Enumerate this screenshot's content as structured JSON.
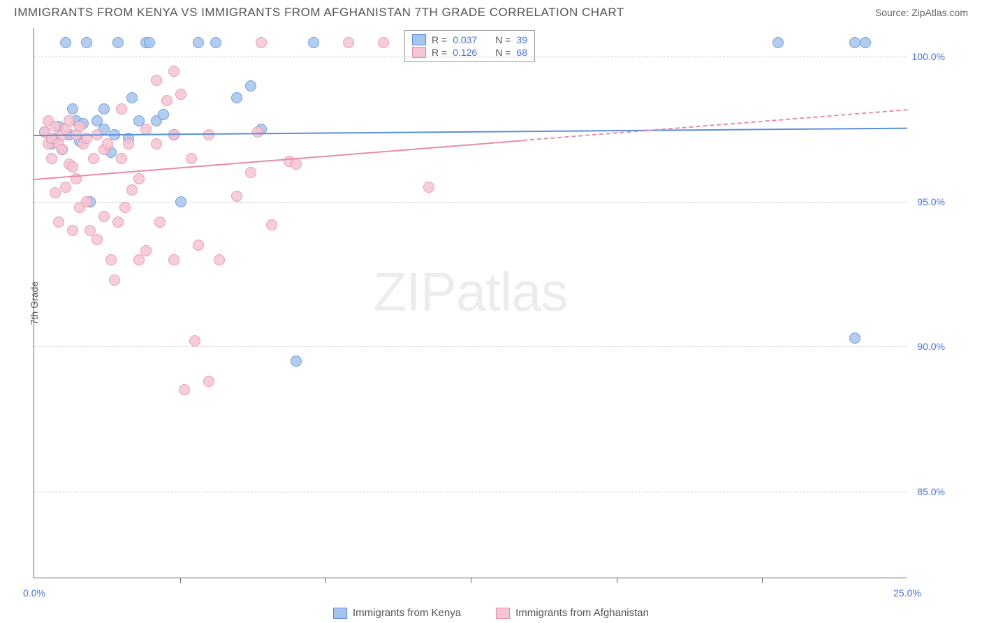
{
  "title": "IMMIGRANTS FROM KENYA VS IMMIGRANTS FROM AFGHANISTAN 7TH GRADE CORRELATION CHART",
  "source": "Source: ZipAtlas.com",
  "watermark": "ZIPatlas",
  "chart": {
    "type": "scatter",
    "y_label": "7th Grade",
    "background_color": "#ffffff",
    "grid_color": "#cccccc",
    "axis_color": "#666666",
    "tick_label_color": "#4472e4",
    "xlim": [
      0,
      25
    ],
    "ylim": [
      82,
      101
    ],
    "x_ticks": [
      0,
      25
    ],
    "x_tick_labels": [
      "0.0%",
      "25.0%"
    ],
    "x_minor_ticks": [
      4.17,
      8.33,
      12.5,
      16.67,
      20.83
    ],
    "y_ticks": [
      85,
      90,
      95,
      100
    ],
    "y_tick_labels": [
      "85.0%",
      "90.0%",
      "95.0%",
      "100.0%"
    ],
    "marker_radius": 8,
    "marker_stroke_width": 1.5,
    "marker_fill_opacity": 0.18,
    "series": [
      {
        "key": "kenya",
        "label": "Immigrants from Kenya",
        "color_stroke": "#5b8fd8",
        "color_fill": "#a6c5ee",
        "R": "0.037",
        "N": "39",
        "trend": {
          "x1": 0,
          "y1": 97.3,
          "x2": 25,
          "y2": 97.55,
          "solid_until": 25,
          "width": 2
        },
        "points": [
          [
            0.3,
            97.4
          ],
          [
            0.5,
            97.0
          ],
          [
            0.6,
            97.2
          ],
          [
            0.7,
            97.6
          ],
          [
            0.8,
            96.8
          ],
          [
            0.9,
            100.5
          ],
          [
            1.0,
            97.3
          ],
          [
            1.1,
            98.2
          ],
          [
            1.2,
            97.8
          ],
          [
            1.3,
            97.1
          ],
          [
            1.4,
            97.7
          ],
          [
            1.5,
            100.5
          ],
          [
            1.6,
            95.0
          ],
          [
            1.8,
            97.8
          ],
          [
            2.0,
            98.2
          ],
          [
            2.0,
            97.5
          ],
          [
            2.2,
            96.7
          ],
          [
            2.3,
            97.3
          ],
          [
            2.4,
            100.5
          ],
          [
            2.7,
            97.2
          ],
          [
            2.8,
            98.6
          ],
          [
            3.0,
            97.8
          ],
          [
            3.2,
            100.5
          ],
          [
            3.3,
            100.5
          ],
          [
            3.5,
            97.8
          ],
          [
            3.7,
            98.0
          ],
          [
            4.0,
            97.3
          ],
          [
            4.2,
            95.0
          ],
          [
            4.7,
            100.5
          ],
          [
            5.2,
            100.5
          ],
          [
            5.8,
            98.6
          ],
          [
            6.2,
            99.0
          ],
          [
            6.5,
            97.5
          ],
          [
            7.5,
            89.5
          ],
          [
            8.0,
            100.5
          ],
          [
            21.3,
            100.5
          ],
          [
            23.5,
            100.5
          ],
          [
            23.5,
            90.3
          ],
          [
            23.8,
            100.5
          ]
        ]
      },
      {
        "key": "afghanistan",
        "label": "Immigrants from Afghanistan",
        "color_stroke": "#e98ba8",
        "color_fill": "#f6c5d4",
        "R": "0.126",
        "N": "68",
        "trend": {
          "x1": 0,
          "y1": 95.8,
          "x2": 25,
          "y2": 98.2,
          "solid_until": 14,
          "width": 2
        },
        "points": [
          [
            0.3,
            97.4
          ],
          [
            0.4,
            97.0
          ],
          [
            0.4,
            97.8
          ],
          [
            0.5,
            97.2
          ],
          [
            0.5,
            96.5
          ],
          [
            0.6,
            97.6
          ],
          [
            0.6,
            95.3
          ],
          [
            0.7,
            94.3
          ],
          [
            0.7,
            97.0
          ],
          [
            0.8,
            97.3
          ],
          [
            0.8,
            96.8
          ],
          [
            0.9,
            95.5
          ],
          [
            0.9,
            97.5
          ],
          [
            1.0,
            96.3
          ],
          [
            1.0,
            97.8
          ],
          [
            1.1,
            94.0
          ],
          [
            1.1,
            96.2
          ],
          [
            1.2,
            95.8
          ],
          [
            1.2,
            97.3
          ],
          [
            1.3,
            97.6
          ],
          [
            1.3,
            94.8
          ],
          [
            1.4,
            97.0
          ],
          [
            1.5,
            97.2
          ],
          [
            1.5,
            95.0
          ],
          [
            1.6,
            94.0
          ],
          [
            1.7,
            96.5
          ],
          [
            1.8,
            97.3
          ],
          [
            1.8,
            93.7
          ],
          [
            2.0,
            94.5
          ],
          [
            2.0,
            96.8
          ],
          [
            2.1,
            97.0
          ],
          [
            2.2,
            93.0
          ],
          [
            2.3,
            92.3
          ],
          [
            2.4,
            94.3
          ],
          [
            2.5,
            96.5
          ],
          [
            2.5,
            98.2
          ],
          [
            2.6,
            94.8
          ],
          [
            2.7,
            97.0
          ],
          [
            2.8,
            95.4
          ],
          [
            3.0,
            93.0
          ],
          [
            3.0,
            95.8
          ],
          [
            3.2,
            97.5
          ],
          [
            3.2,
            93.3
          ],
          [
            3.5,
            97.0
          ],
          [
            3.5,
            99.2
          ],
          [
            3.6,
            94.3
          ],
          [
            3.8,
            98.5
          ],
          [
            4.0,
            97.3
          ],
          [
            4.0,
            93.0
          ],
          [
            4.0,
            99.5
          ],
          [
            4.2,
            98.7
          ],
          [
            4.3,
            88.5
          ],
          [
            4.5,
            96.5
          ],
          [
            4.6,
            90.2
          ],
          [
            4.7,
            93.5
          ],
          [
            5.0,
            88.8
          ],
          [
            5.0,
            97.3
          ],
          [
            5.3,
            93.0
          ],
          [
            5.8,
            95.2
          ],
          [
            6.2,
            96.0
          ],
          [
            6.4,
            97.4
          ],
          [
            6.5,
            100.5
          ],
          [
            6.8,
            94.2
          ],
          [
            7.3,
            96.4
          ],
          [
            7.5,
            96.3
          ],
          [
            9.0,
            100.5
          ],
          [
            10.0,
            100.5
          ],
          [
            11.3,
            95.5
          ]
        ]
      }
    ],
    "legend_top": {
      "border_color": "#999999",
      "rows": [
        {
          "swatch_fill": "#a6c5ee",
          "swatch_stroke": "#5b8fd8",
          "r_label": "R =",
          "r_val": "0.037",
          "n_label": "N =",
          "n_val": "39"
        },
        {
          "swatch_fill": "#f6c5d4",
          "swatch_stroke": "#e98ba8",
          "r_label": "R =",
          "r_val": " 0.126",
          "n_label": "N =",
          "n_val": "68"
        }
      ]
    }
  }
}
